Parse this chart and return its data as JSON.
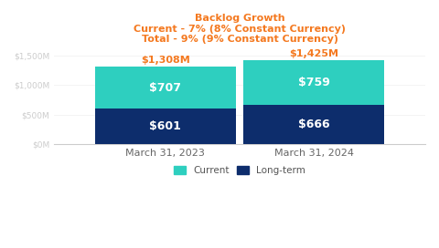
{
  "title_lines": [
    "Backlog Growth",
    "Current - 7% (8% Constant Currency)",
    "Total - 9% (9% Constant Currency)"
  ],
  "title_color": "#F47920",
  "categories": [
    "March 31, 2023",
    "March 31, 2024"
  ],
  "longterm_values": [
    601,
    666
  ],
  "current_values": [
    707,
    759
  ],
  "totals": [
    "$1,308M",
    "$1,425M"
  ],
  "longterm_color": "#0D2D6C",
  "current_color": "#2ECFBF",
  "longterm_label": "Long-term",
  "current_label": "Current",
  "bar_label_color": "#FFFFFF",
  "total_label_color": "#F47920",
  "ylim": [
    0,
    1600
  ],
  "yticks": [
    0,
    500,
    1000,
    1500
  ],
  "ytick_labels": [
    "$0M",
    "$500M",
    "$1,000M",
    "$1,500M"
  ],
  "ytick_color": "#CCCCCC",
  "background_color": "#FFFFFF",
  "bar_width": 0.38,
  "bar_label_fontsize": 9,
  "total_label_fontsize": 8,
  "axis_label_fontsize": 8,
  "title_fontsize": 8
}
